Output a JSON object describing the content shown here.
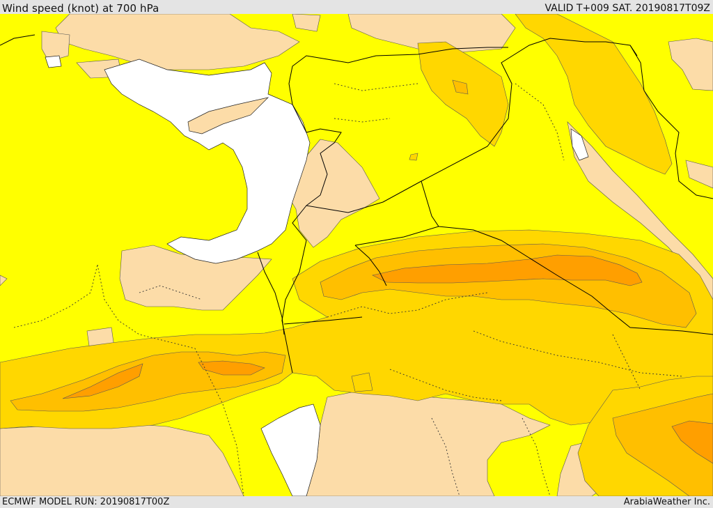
{
  "header": {
    "title": "Wind speed (knot) at 700 hPa",
    "valid_time": "VALID T+009 SAT. 20190817T09Z"
  },
  "footer": {
    "model_run": "ECMWF MODEL RUN: 20190817T00Z",
    "credit": "ArabiaWeather Inc."
  },
  "map": {
    "parameter": "wind speed",
    "level_hpa": 700,
    "units": "knot",
    "region": "Eastern Mediterranean / Levant / Arabia",
    "colors": {
      "water": "#ffffff",
      "calm": "#fcdca8",
      "light": "#ffff00",
      "moderate": "#ffd700",
      "strong": "#ffbf00",
      "stronger": "#ff9f00",
      "border_line": "#000000"
    }
  }
}
